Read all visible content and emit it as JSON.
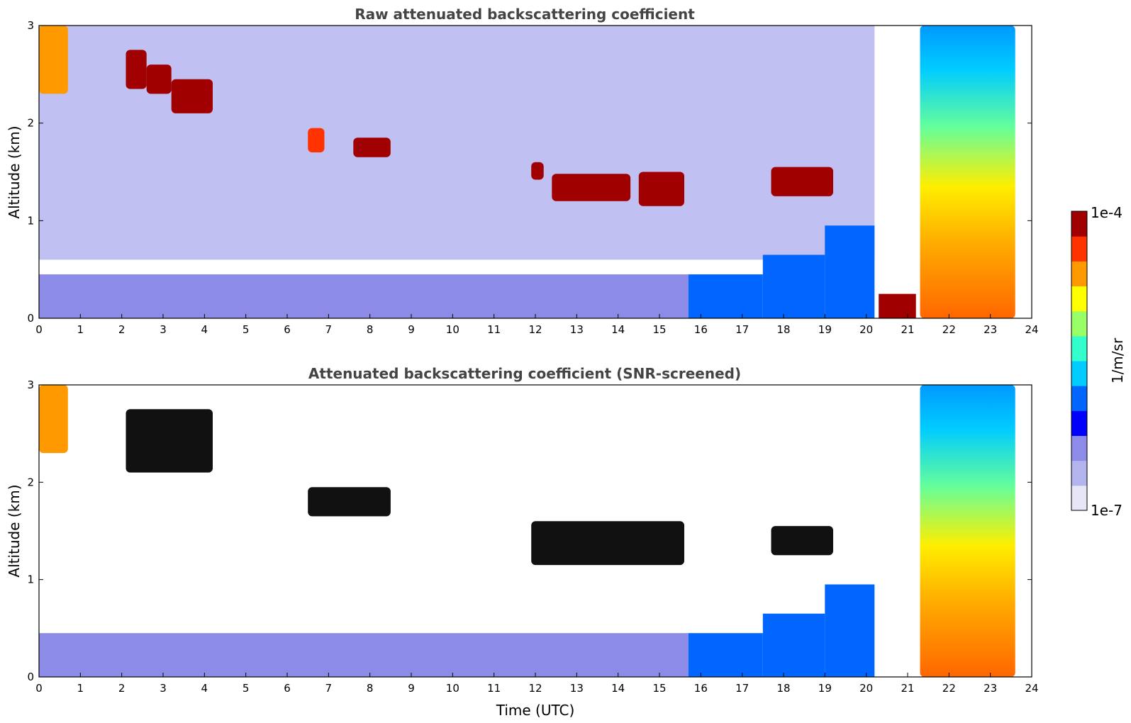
{
  "chart_data": [
    {
      "type": "heatmap",
      "title": "Raw attenuated backscattering coefficient",
      "xlabel": "",
      "ylabel": "Altitude (km)",
      "xlim": [
        0,
        24
      ],
      "ylim": [
        0,
        3
      ],
      "xticks": [
        "0",
        "1",
        "2",
        "3",
        "4",
        "5",
        "6",
        "7",
        "8",
        "9",
        "10",
        "11",
        "12",
        "13",
        "14",
        "15",
        "16",
        "17",
        "18",
        "19",
        "20",
        "21",
        "22",
        "23",
        "24"
      ],
      "yticks": [
        "0",
        "1",
        "2",
        "3"
      ],
      "features": [
        {
          "kind": "noise",
          "x0": 0,
          "x1": 20.2,
          "y0": 0.6,
          "y1": 3.0,
          "log_value": -6.4
        },
        {
          "kind": "layer",
          "x0": 0,
          "x1": 15.7,
          "y0": 0.0,
          "y1": 0.45,
          "log_value": -6.3
        },
        {
          "kind": "layer",
          "x0": 15.7,
          "x1": 17.5,
          "y0": 0.0,
          "y1": 0.45,
          "log_value": -6.0
        },
        {
          "kind": "layer",
          "x0": 17.5,
          "x1": 19.0,
          "y0": 0.0,
          "y1": 0.65,
          "log_value": -6.0
        },
        {
          "kind": "layer",
          "x0": 19.0,
          "x1": 20.2,
          "y0": 0.0,
          "y1": 0.95,
          "log_value": -6.0
        },
        {
          "kind": "layer",
          "x0": 20.3,
          "x1": 21.2,
          "y0": 0.0,
          "y1": 0.25,
          "log_value": -4.2
        },
        {
          "kind": "cloud",
          "x0": 2.1,
          "x1": 2.6,
          "y0": 2.35,
          "y1": 2.75,
          "log_value": -4.1
        },
        {
          "kind": "cloud",
          "x0": 2.6,
          "x1": 3.2,
          "y0": 2.3,
          "y1": 2.6,
          "log_value": -4.1
        },
        {
          "kind": "cloud",
          "x0": 3.2,
          "x1": 4.2,
          "y0": 2.1,
          "y1": 2.45,
          "log_value": -4.0
        },
        {
          "kind": "cloud",
          "x0": 6.5,
          "x1": 6.9,
          "y0": 1.7,
          "y1": 1.95,
          "log_value": -4.3
        },
        {
          "kind": "cloud",
          "x0": 7.6,
          "x1": 8.5,
          "y0": 1.65,
          "y1": 1.85,
          "log_value": -4.2
        },
        {
          "kind": "cloud",
          "x0": 11.9,
          "x1": 12.2,
          "y0": 1.42,
          "y1": 1.6,
          "log_value": -4.1
        },
        {
          "kind": "cloud",
          "x0": 12.4,
          "x1": 14.3,
          "y0": 1.2,
          "y1": 1.48,
          "log_value": -4.0
        },
        {
          "kind": "cloud",
          "x0": 14.5,
          "x1": 15.6,
          "y0": 1.15,
          "y1": 1.5,
          "log_value": -4.0
        },
        {
          "kind": "cloud",
          "x0": 17.7,
          "x1": 19.2,
          "y0": 1.25,
          "y1": 1.55,
          "log_value": -4.1
        },
        {
          "kind": "cloud",
          "x0": 21.3,
          "x1": 23.6,
          "y0": 0.0,
          "y1": 3.0,
          "log_value": -5.0
        },
        {
          "kind": "cloud",
          "x0": 0.0,
          "x1": 0.7,
          "y0": 2.3,
          "y1": 3.0,
          "log_value": -4.6
        }
      ]
    },
    {
      "type": "heatmap",
      "title": "Attenuated backscattering coefficient (SNR-screened)",
      "xlabel": "Time (UTC)",
      "ylabel": "Altitude (km)",
      "xlim": [
        0,
        24
      ],
      "ylim": [
        0,
        3
      ],
      "xticks": [
        "0",
        "1",
        "2",
        "3",
        "4",
        "5",
        "6",
        "7",
        "8",
        "9",
        "10",
        "11",
        "12",
        "13",
        "14",
        "15",
        "16",
        "17",
        "18",
        "19",
        "20",
        "21",
        "22",
        "23",
        "24"
      ],
      "yticks": [
        "0",
        "1",
        "2",
        "3"
      ],
      "features": [
        {
          "kind": "layer",
          "x0": 0,
          "x1": 15.7,
          "y0": 0.0,
          "y1": 0.45,
          "log_value": -6.4
        },
        {
          "kind": "layer",
          "x0": 15.7,
          "x1": 17.5,
          "y0": 0.0,
          "y1": 0.45,
          "log_value": -6.0
        },
        {
          "kind": "layer",
          "x0": 17.5,
          "x1": 19.0,
          "y0": 0.0,
          "y1": 0.65,
          "log_value": -6.0
        },
        {
          "kind": "layer",
          "x0": 19.0,
          "x1": 20.2,
          "y0": 0.0,
          "y1": 0.95,
          "log_value": -6.0
        },
        {
          "kind": "cloud",
          "x0": 2.1,
          "x1": 4.2,
          "y0": 2.1,
          "y1": 2.75,
          "log_value": -3.8
        },
        {
          "kind": "cloud",
          "x0": 6.5,
          "x1": 8.5,
          "y0": 1.65,
          "y1": 1.95,
          "log_value": -3.8
        },
        {
          "kind": "cloud",
          "x0": 11.9,
          "x1": 15.6,
          "y0": 1.15,
          "y1": 1.6,
          "log_value": -3.8
        },
        {
          "kind": "cloud",
          "x0": 17.7,
          "x1": 19.2,
          "y0": 1.25,
          "y1": 1.55,
          "log_value": -3.8
        },
        {
          "kind": "cloud",
          "x0": 21.3,
          "x1": 23.6,
          "y0": 0.0,
          "y1": 3.0,
          "log_value": -5.0
        },
        {
          "kind": "cloud",
          "x0": 0.0,
          "x1": 0.7,
          "y0": 2.3,
          "y1": 3.0,
          "log_value": -4.6
        }
      ]
    }
  ],
  "colorbar": {
    "label": "1/m/sr",
    "max_label": "1e-4",
    "min_label": "1e-7",
    "range": [
      1e-07,
      0.0001
    ],
    "scale": "log",
    "colormap": "jet",
    "colors": [
      "#e6e6f7",
      "#b3b3ee",
      "#8c8ce8",
      "#0000ff",
      "#0066ff",
      "#00ccff",
      "#33ffcc",
      "#99ff66",
      "#ffff00",
      "#ff9900",
      "#ff3300",
      "#a00000"
    ]
  }
}
